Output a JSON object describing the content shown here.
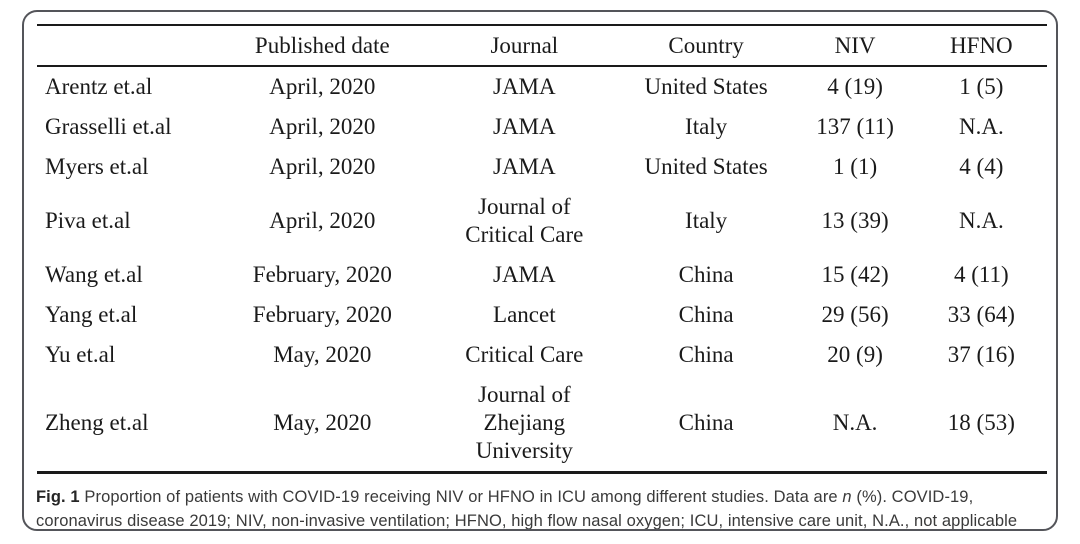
{
  "table": {
    "columns": [
      "",
      "Published date",
      "Journal",
      "Country",
      "NIV",
      "HFNO"
    ],
    "rows": [
      {
        "study": "Arentz et.al",
        "date": "April, 2020",
        "journal": "JAMA",
        "country": "United States",
        "niv": "4 (19)",
        "hfno": "1 (5)"
      },
      {
        "study": "Grasselli et.al",
        "date": "April, 2020",
        "journal": "JAMA",
        "country": "Italy",
        "niv": "137 (11)",
        "hfno": "N.A."
      },
      {
        "study": "Myers et.al",
        "date": "April, 2020",
        "journal": "JAMA",
        "country": "United States",
        "niv": "1 (1)",
        "hfno": "4 (4)"
      },
      {
        "study": "Piva et.al",
        "date": "April, 2020",
        "journal": "Journal of\nCritical Care",
        "country": "Italy",
        "niv": "13 (39)",
        "hfno": "N.A."
      },
      {
        "study": "Wang et.al",
        "date": "February, 2020",
        "journal": "JAMA",
        "country": "China",
        "niv": "15 (42)",
        "hfno": "4 (11)"
      },
      {
        "study": "Yang et.al",
        "date": "February, 2020",
        "journal": "Lancet",
        "country": "China",
        "niv": "29 (56)",
        "hfno": "33 (64)"
      },
      {
        "study": "Yu et.al",
        "date": "May, 2020",
        "journal": "Critical Care",
        "country": "China",
        "niv": "20 (9)",
        "hfno": "37 (16)"
      },
      {
        "study": "Zheng et.al",
        "date": "May, 2020",
        "journal": "Journal of\nZhejiang\nUniversity",
        "country": "China",
        "niv": "N.A.",
        "hfno": "18 (53)"
      }
    ]
  },
  "caption": {
    "label": "Fig. 1",
    "text_before_n": " Proportion of patients with COVID-19 receiving NIV or HFNO in ICU among different studies. Data are ",
    "italic_term": "n",
    "text_after_n": " (%). COVID-19, coronavirus disease 2019; NIV, non-invasive ventilation; HFNO, high flow nasal oxygen; ICU, intensive care unit, N.A., not applicable"
  },
  "colors": {
    "border": "#54555a",
    "rule": "#1a1a1a",
    "body_text": "#1a1a1a",
    "caption_text": "#3a3a3a"
  }
}
